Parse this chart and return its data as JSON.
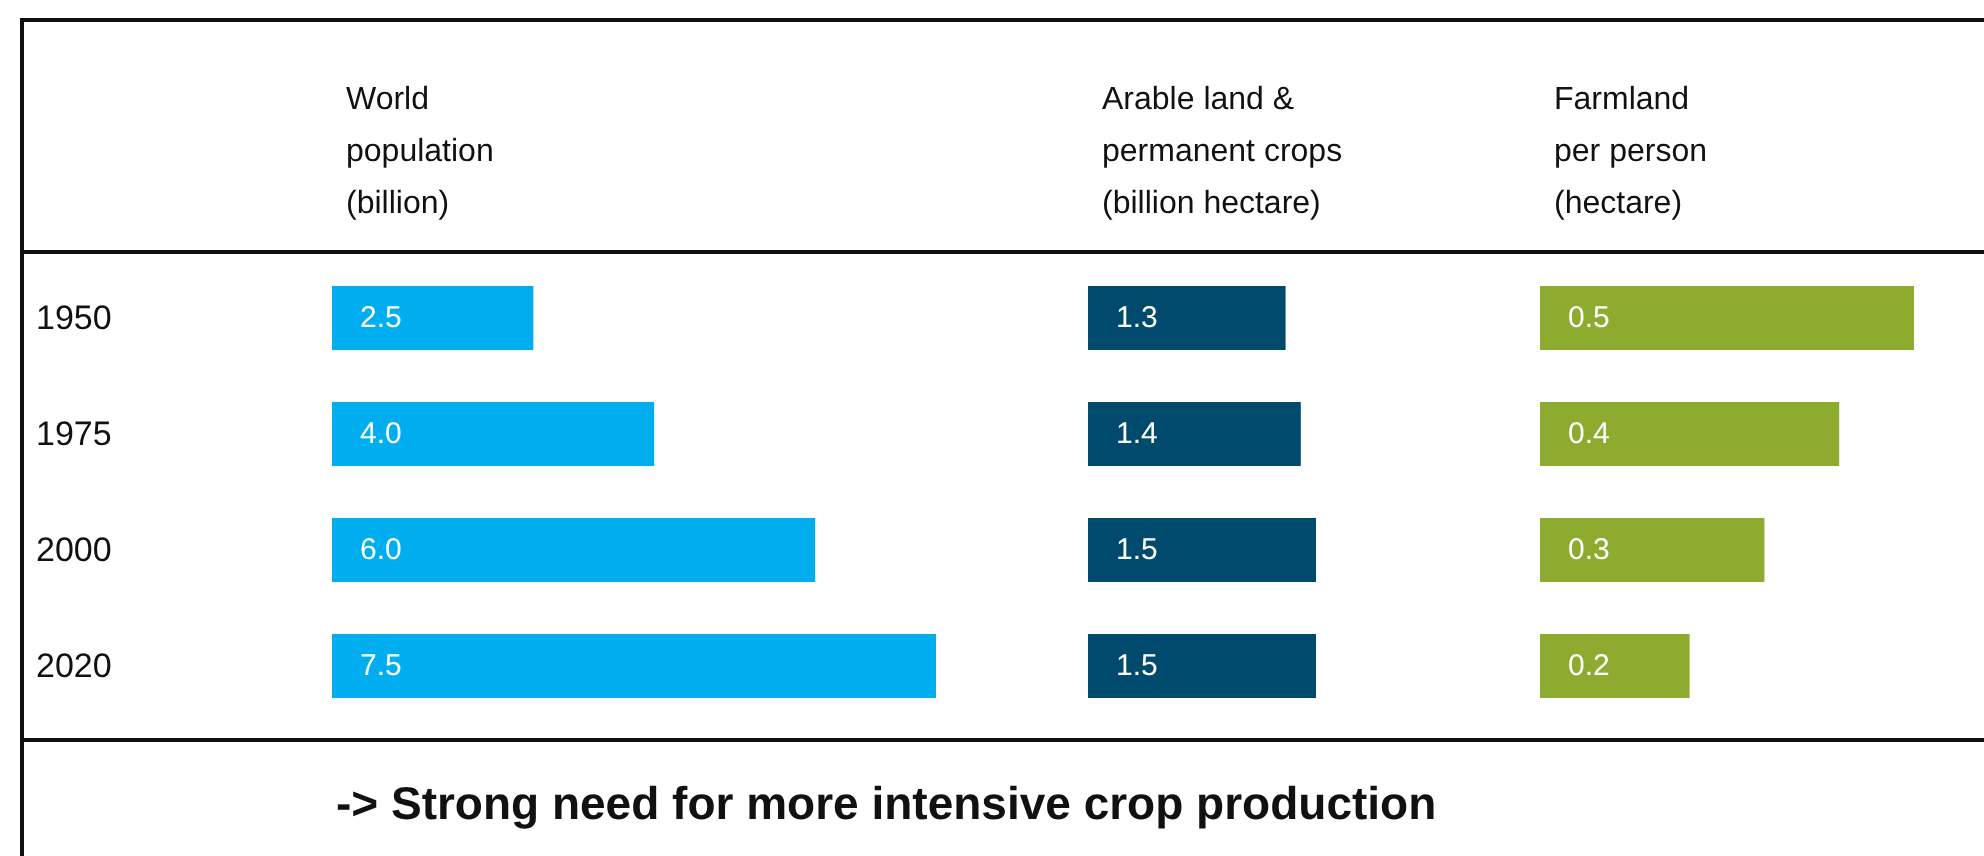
{
  "chart_data": [
    {
      "type": "bar",
      "orientation": "horizontal",
      "title": "World\npopulation\n(billion)",
      "categories": [
        "1950",
        "1975",
        "2000",
        "2020"
      ],
      "values": [
        2.5,
        4.0,
        6.0,
        7.5
      ],
      "value_labels": [
        "2.5",
        "4.0",
        "6.0",
        "7.5"
      ],
      "color": "#00aeef",
      "tick_labels": "y",
      "annotations": [
        "-> Strong need for more intensive crop production"
      ]
    },
    {
      "type": "bar",
      "orientation": "horizontal",
      "title": "Arable land &\npermanent crops\n(billion hectare)",
      "categories": [
        "1950",
        "1975",
        "2000",
        "2020"
      ],
      "values": [
        1.3,
        1.4,
        1.5,
        1.5
      ],
      "value_labels": [
        "1.3",
        "1.4",
        "1.5",
        "1.5"
      ],
      "color": "#004a6e",
      "tick_labels": false
    },
    {
      "type": "bar",
      "orientation": "horizontal",
      "title": "Farmland\nper person\n(hectare)",
      "categories": [
        "1950",
        "1975",
        "2000",
        "2020"
      ],
      "values": [
        0.5,
        0.4,
        0.3,
        0.2
      ],
      "value_labels": [
        "0.5",
        "0.4",
        "0.3",
        "0.2"
      ],
      "color": "#8dab2e",
      "tick_labels": false
    }
  ]
}
